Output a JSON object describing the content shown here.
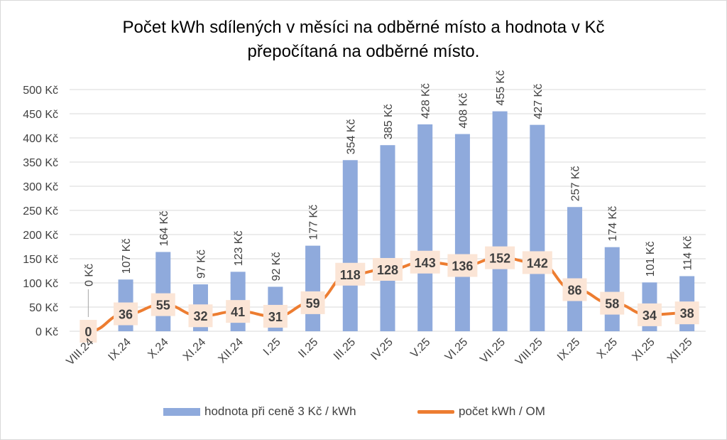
{
  "chart_data": {
    "type": "bar+line",
    "title_lines": [
      "Počet kWh sdílených v měsíci na odběrné místo a hodnota v Kč",
      "přepočítaná na odběrné místo."
    ],
    "categories": [
      "VIII.24",
      "IX.24",
      "X.24",
      "XI.24",
      "XII.24",
      "I.25",
      "II.25",
      "III.25",
      "IV.25",
      "V.25",
      "VI.25",
      "VII.25",
      "VIII.25",
      "IX.25",
      "X.25",
      "XI.25",
      "XII.25"
    ],
    "y_ticks": [
      "0 Kč",
      "50 Kč",
      "100 Kč",
      "150 Kč",
      "200 Kč",
      "250 Kč",
      "300 Kč",
      "350 Kč",
      "400 Kč",
      "450 Kč",
      "500 Kč"
    ],
    "ylim": [
      0,
      500
    ],
    "grid": true,
    "legend_position": "bottom",
    "series": [
      {
        "name": "hodnota při ceně 3 Kč / kWh",
        "type": "bar",
        "color": "#8faadc",
        "values": [
          0,
          107,
          164,
          97,
          123,
          92,
          177,
          354,
          385,
          428,
          408,
          455,
          427,
          257,
          174,
          101,
          114
        ],
        "labels": [
          "0 Kč",
          "107 Kč",
          "164 Kč",
          "97 Kč",
          "123 Kč",
          "92 Kč",
          "177 Kč",
          "354 Kč",
          "385 Kč",
          "428 Kč",
          "408 Kč",
          "455 Kč",
          "427 Kč",
          "257 Kč",
          "174 Kč",
          "101 Kč",
          "114 Kč"
        ]
      },
      {
        "name": "počet kWh / OM",
        "type": "line",
        "color": "#ed7d31",
        "values": [
          0,
          36,
          55,
          32,
          41,
          31,
          59,
          118,
          128,
          143,
          136,
          152,
          142,
          86,
          58,
          34,
          38
        ],
        "labels": [
          "0",
          "36",
          "55",
          "32",
          "41",
          "31",
          "59",
          "118",
          "128",
          "143",
          "136",
          "152",
          "142",
          "86",
          "58",
          "34",
          "38"
        ]
      }
    ]
  }
}
